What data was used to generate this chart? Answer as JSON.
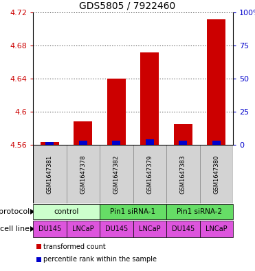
{
  "title": "GDS5805 / 7922460",
  "samples": [
    "GSM1647381",
    "GSM1647378",
    "GSM1647382",
    "GSM1647379",
    "GSM1647383",
    "GSM1647380"
  ],
  "transformed_counts": [
    4.563,
    4.588,
    4.64,
    4.672,
    4.585,
    4.712
  ],
  "percentile_ranks": [
    2,
    3,
    3,
    4,
    3,
    3
  ],
  "ylim_min": 4.56,
  "ylim_max": 4.72,
  "y_ticks": [
    4.56,
    4.6,
    4.64,
    4.68,
    4.72
  ],
  "right_yticks": [
    0,
    25,
    50,
    75,
    100
  ],
  "protocols": [
    {
      "label": "control",
      "start": 0,
      "end": 2,
      "color": "#ccffcc"
    },
    {
      "label": "Pin1 siRNA-1",
      "start": 2,
      "end": 4,
      "color": "#66dd66"
    },
    {
      "label": "Pin1 siRNA-2",
      "start": 4,
      "end": 6,
      "color": "#66dd66"
    }
  ],
  "cell_lines": [
    "DU145",
    "LNCaP",
    "DU145",
    "LNCaP",
    "DU145",
    "LNCaP"
  ],
  "cell_color": "#dd55dd",
  "bar_color_red": "#cc0000",
  "bar_color_blue": "#0000cc",
  "legend_red": "transformed count",
  "legend_blue": "percentile rank within the sample",
  "background_color": "#ffffff",
  "left_tick_color": "#cc0000",
  "right_tick_color": "#0000cc",
  "title_fontsize": 10,
  "tick_fontsize": 8,
  "sample_fontsize": 6,
  "proto_fontsize": 7.5,
  "cell_fontsize": 7,
  "legend_fontsize": 7
}
